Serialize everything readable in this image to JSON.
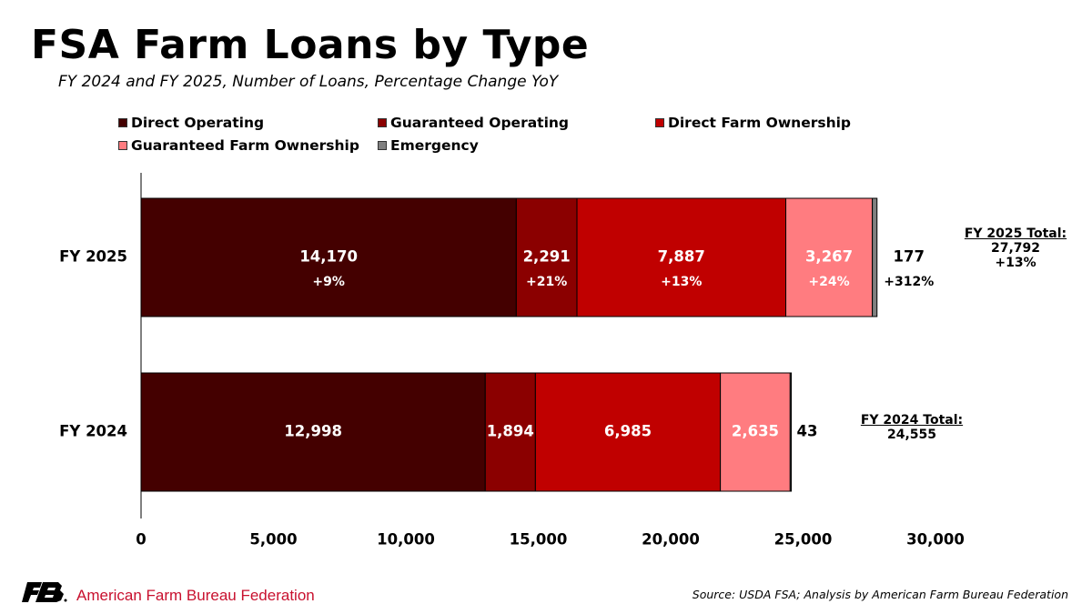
{
  "title": "FSA Farm Loans by Type",
  "subtitle": "FY 2024 and FY 2025, Number of Loans, Percentage Change YoY",
  "legend": [
    {
      "label": "Direct Operating",
      "color": "#440000"
    },
    {
      "label": "Guaranteed Operating",
      "color": "#8b0000"
    },
    {
      "label": "Direct Farm Ownership",
      "color": "#c00000"
    },
    {
      "label": "Guaranteed Farm Ownership",
      "color": "#ff7c80"
    },
    {
      "label": "Emergency",
      "color": "#808080"
    }
  ],
  "totals": {
    "fy2025": {
      "heading": "FY 2025 Total:",
      "value": "27,792",
      "change": "+13%"
    },
    "fy2024": {
      "heading": "FY 2024 Total:",
      "value": "24,555"
    }
  },
  "footer": {
    "org": "American Farm Bureau Federation",
    "source": "Source: USDA FSA; Analysis by American Farm Bureau Federation"
  },
  "chart_data": {
    "type": "bar",
    "orientation": "horizontal",
    "stacked": true,
    "categories": [
      "FY 2025",
      "FY 2024"
    ],
    "series": [
      {
        "name": "Direct Operating",
        "color": "#440000",
        "values": [
          14170,
          12998
        ],
        "labels": [
          "14,170",
          "12,998"
        ],
        "changes": [
          "+9%",
          null
        ]
      },
      {
        "name": "Guaranteed Operating",
        "color": "#8b0000",
        "values": [
          2291,
          1894
        ],
        "labels": [
          "2,291",
          "1,894"
        ],
        "changes": [
          "+21%",
          null
        ]
      },
      {
        "name": "Direct Farm Ownership",
        "color": "#c00000",
        "values": [
          7887,
          6985
        ],
        "labels": [
          "7,887",
          "6,985"
        ],
        "changes": [
          "+13%",
          null
        ]
      },
      {
        "name": "Guaranteed Farm Ownership",
        "color": "#ff7c80",
        "values": [
          3267,
          2635
        ],
        "labels": [
          "3,267",
          "2,635"
        ],
        "changes": [
          "+24%",
          null
        ]
      },
      {
        "name": "Emergency",
        "color": "#808080",
        "values": [
          177,
          43
        ],
        "labels": [
          "177",
          "43"
        ],
        "changes": [
          "+312%",
          null
        ]
      }
    ],
    "xlim": [
      0,
      30000
    ],
    "xticks": [
      0,
      5000,
      10000,
      15000,
      20000,
      25000,
      30000
    ],
    "xtick_labels": [
      "0",
      "5,000",
      "10,000",
      "15,000",
      "20,000",
      "25,000",
      "30,000"
    ],
    "grid": false,
    "legend_position": "top"
  }
}
